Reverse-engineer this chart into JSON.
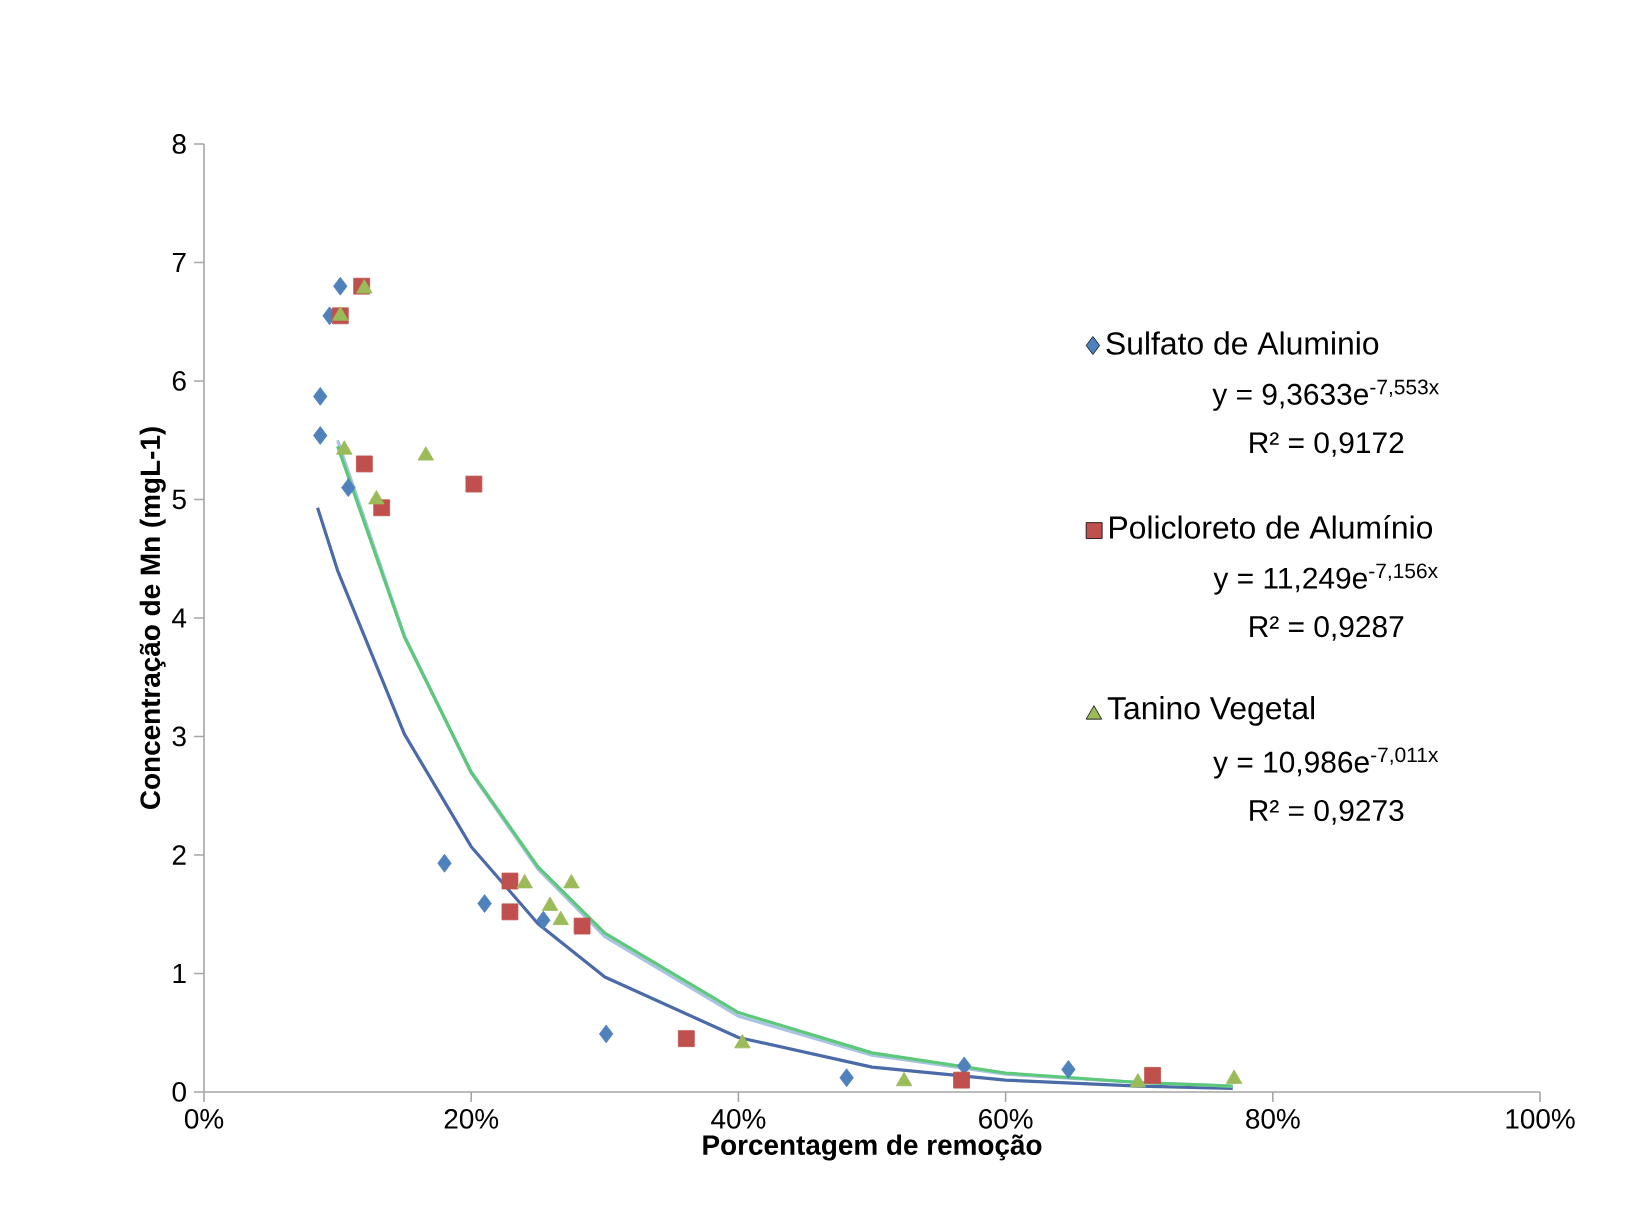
{
  "chart_data": {
    "type": "scatter",
    "xlabel": "Porcentagem de remoção",
    "ylabel": "Concentração de  Mn (mgL-1)",
    "xlim": [
      0,
      100
    ],
    "xticks": [
      {
        "value": 0,
        "label": "0%"
      },
      {
        "value": 20,
        "label": "20%"
      },
      {
        "value": 40,
        "label": "40%"
      },
      {
        "value": 60,
        "label": "60%"
      },
      {
        "value": 80,
        "label": "80%"
      },
      {
        "value": 100,
        "label": "100%"
      }
    ],
    "ylim": [
      0,
      8
    ],
    "yticks": [
      0,
      1,
      2,
      3,
      4,
      5,
      6,
      7,
      8
    ],
    "grid": false,
    "legend": "right",
    "annotations": [
      "y = 9,3633e$^{-7,553x}$",
      "R² = 0,9172",
      "y = 11,249e$^{-7,156x}$",
      "R² = 0,9287",
      "y = 10,986e$^{-7,011x}$",
      "R² = 0,9273"
    ],
    "series": [
      {
        "name": "Sulfato de Aluminio",
        "color": "#4f81bd",
        "marker": "diamond",
        "x": [
          10.2,
          9.4,
          8.7,
          8.7,
          10.8,
          18.0,
          21.0,
          25.4,
          30.1,
          48.1,
          56.9,
          64.7
        ],
        "values": [
          6.8,
          6.55,
          5.87,
          5.54,
          5.1,
          1.93,
          1.59,
          1.45,
          0.49,
          0.12,
          0.22,
          0.19
        ]
      },
      {
        "name": "Policloreto de Alumínio",
        "color": "#c0504d",
        "marker": "square",
        "x": [
          11.8,
          10.2,
          12.0,
          13.3,
          20.2,
          22.9,
          22.9,
          28.3,
          36.1,
          56.7,
          71.0
        ],
        "values": [
          6.8,
          6.55,
          5.3,
          4.93,
          5.13,
          1.78,
          1.52,
          1.4,
          0.45,
          0.1,
          0.14
        ]
      },
      {
        "name": "Tanino Vegetal",
        "color": "#9bbb59",
        "marker": "triangle",
        "x": [
          12.0,
          10.2,
          10.5,
          16.6,
          12.9,
          24.0,
          27.5,
          25.9,
          26.7,
          40.3,
          52.4,
          69.9,
          77.1
        ],
        "values": [
          6.78,
          6.55,
          5.42,
          5.37,
          5.0,
          1.76,
          1.76,
          1.57,
          1.45,
          0.41,
          0.09,
          0.08,
          0.11
        ]
      },
      {
        "type": "line",
        "color": "#4a6aa8",
        "marker": "none",
        "x": [
          8.5,
          10,
          15,
          20,
          25,
          30,
          40,
          50,
          60,
          70,
          77
        ],
        "values": [
          4.93,
          4.4,
          3.02,
          2.07,
          1.42,
          0.97,
          0.46,
          0.21,
          0.1,
          0.05,
          0.03
        ]
      },
      {
        "type": "line",
        "color": "#a9c4e0",
        "marker": "none",
        "x": [
          10,
          15,
          20,
          25,
          30,
          40,
          50,
          60,
          70,
          77
        ],
        "values": [
          5.5,
          3.85,
          2.69,
          1.88,
          1.31,
          0.64,
          0.31,
          0.15,
          0.08,
          0.05
        ]
      },
      {
        "type": "line",
        "color": "#5cc87a",
        "marker": "none",
        "x": [
          10,
          15,
          20,
          25,
          30,
          40,
          50,
          60,
          70,
          77
        ],
        "values": [
          5.45,
          3.84,
          2.7,
          1.9,
          1.34,
          0.67,
          0.33,
          0.16,
          0.08,
          0.05
        ]
      }
    ]
  }
}
